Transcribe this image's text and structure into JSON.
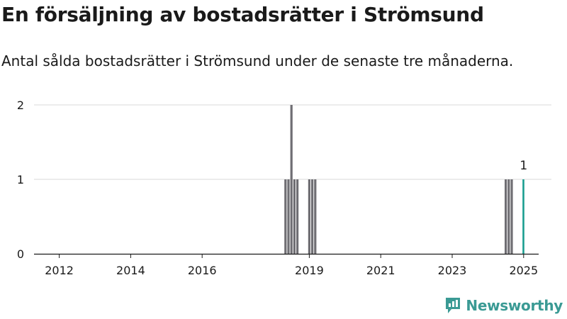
{
  "title": "En försäljning av bostadsrätter i Strömsund",
  "subtitle": "Antal sålda bostadsrätter i Strömsund under de senaste tre månaderna.",
  "logo_text": "Newsworthy",
  "colors": {
    "bar": "#6f6e73",
    "highlight": "#1a9e90",
    "grid": "#d9d9d9",
    "axis": "#1a1a1a",
    "brand": "#3a9a94"
  },
  "chart_data": {
    "type": "bar",
    "xlabel": "",
    "ylabel": "",
    "ylim": [
      0,
      2
    ],
    "y_ticks": [
      0,
      1,
      2
    ],
    "x_ticks": [
      "2012",
      "2014",
      "2016",
      "2019",
      "2021",
      "2023",
      "2025"
    ],
    "grid": true,
    "x": [
      "2018-05",
      "2018-06",
      "2018-07",
      "2018-08",
      "2018-09",
      "2019-01",
      "2019-02",
      "2019-03",
      "2024-07",
      "2024-08",
      "2024-09",
      "2025-01"
    ],
    "values": [
      1,
      1,
      2,
      1,
      1,
      1,
      1,
      1,
      1,
      1,
      1,
      1
    ],
    "highlight_index": 11,
    "annotations": [
      {
        "x": "2025-01",
        "text": "1"
      }
    ]
  }
}
